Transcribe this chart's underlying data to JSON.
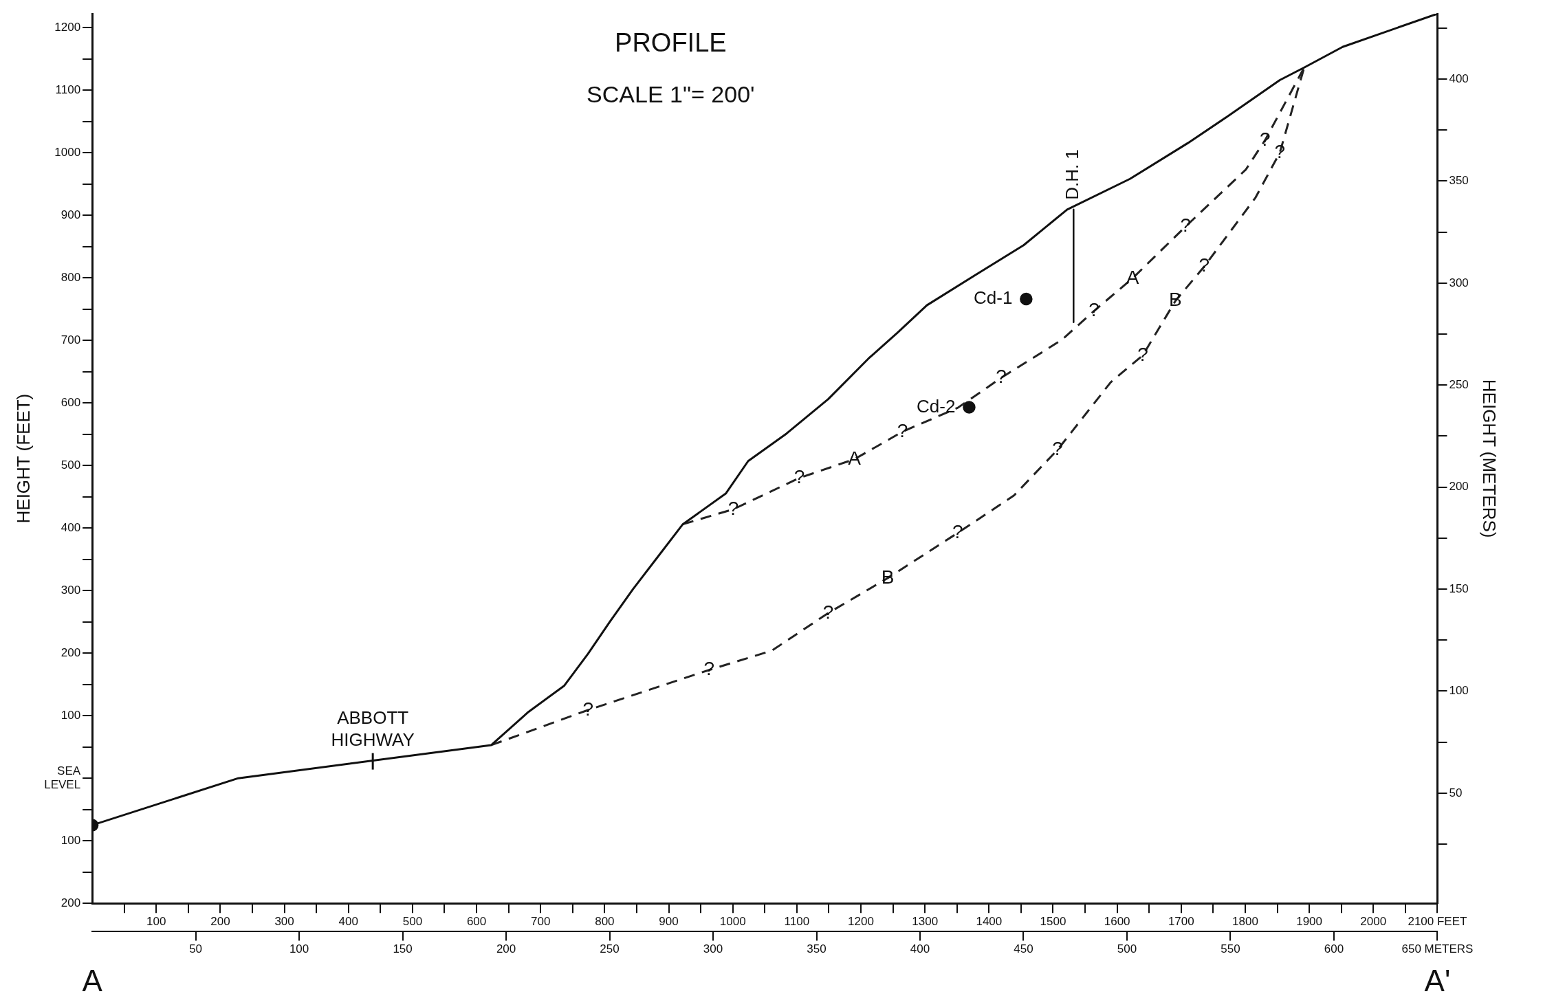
{
  "chart_data": {
    "type": "line",
    "title": "PROFILE",
    "subtitle": "SCALE 1\"= 200'",
    "ylabel": "HEIGHT (FEET)",
    "y2label": "HEIGHT (METERS)",
    "grid": false,
    "legend": false,
    "marker": "none",
    "xlim": [
      0,
      2100
    ],
    "xticks": [
      {
        "value": 50,
        "label": null
      },
      100,
      {
        "value": 150,
        "label": null
      },
      200,
      {
        "value": 250,
        "label": null
      },
      300,
      {
        "value": 350,
        "label": null
      },
      400,
      {
        "value": 450,
        "label": null
      },
      500,
      {
        "value": 550,
        "label": null
      },
      600,
      {
        "value": 650,
        "label": null
      },
      700,
      {
        "value": 750,
        "label": null
      },
      800,
      {
        "value": 850,
        "label": null
      },
      900,
      {
        "value": 950,
        "label": null
      },
      1000,
      {
        "value": 1050,
        "label": null
      },
      1100,
      {
        "value": 1150,
        "label": null
      },
      1200,
      {
        "value": 1250,
        "label": null
      },
      1300,
      {
        "value": 1350,
        "label": null
      },
      1400,
      {
        "value": 1450,
        "label": null
      },
      1500,
      {
        "value": 1550,
        "label": null
      },
      1600,
      {
        "value": 1650,
        "label": null
      },
      1700,
      {
        "value": 1750,
        "label": null
      },
      1800,
      {
        "value": 1850,
        "label": null
      },
      1900,
      {
        "value": 1950,
        "label": null
      },
      2000,
      {
        "value": 2050,
        "label": null
      },
      {
        "value": 2100,
        "label": "2100 FEET"
      }
    ],
    "x2lim": [
      0,
      650
    ],
    "x2ticks": [
      50,
      100,
      150,
      200,
      250,
      300,
      350,
      400,
      450,
      500,
      550,
      600,
      {
        "value": 650,
        "label": "650 METERS"
      }
    ],
    "ylim": [
      -200,
      1222
    ],
    "yticks": [
      {
        "value": -200,
        "label": "200"
      },
      {
        "value": -150,
        "label": null
      },
      {
        "value": -100,
        "label": "100"
      },
      {
        "value": -50,
        "label": null
      },
      {
        "value": 0,
        "label": "SEA LEVEL"
      },
      {
        "value": 50,
        "label": null
      },
      100,
      {
        "value": 150,
        "label": null
      },
      200,
      {
        "value": 250,
        "label": null
      },
      300,
      {
        "value": 350,
        "label": null
      },
      400,
      {
        "value": 450,
        "label": null
      },
      500,
      {
        "value": 550,
        "label": null
      },
      600,
      {
        "value": 650,
        "label": null
      },
      700,
      {
        "value": 750,
        "label": null
      },
      800,
      {
        "value": 850,
        "label": null
      },
      900,
      {
        "value": 950,
        "label": null
      },
      1000,
      {
        "value": 1050,
        "label": null
      },
      1100,
      {
        "value": 1150,
        "label": null
      },
      1200
    ],
    "y2lim": [
      -4,
      432
    ],
    "y2ticks": [
      {
        "value": 25,
        "label": null
      },
      50,
      {
        "value": 75,
        "label": null
      },
      100,
      {
        "value": 125,
        "label": null
      },
      150,
      {
        "value": 175,
        "label": null
      },
      200,
      {
        "value": 225,
        "label": null
      },
      250,
      {
        "value": 275,
        "label": null
      },
      300,
      {
        "value": 325,
        "label": null
      },
      350,
      {
        "value": 375,
        "label": null
      },
      400,
      {
        "value": 425,
        "label": null
      }
    ],
    "series": [
      {
        "color": "#111111",
        "line_style": "solid",
        "x": [
          0,
          228,
          623,
          681,
          737,
          774,
          808,
          844,
          883,
          922,
          989,
          1024,
          1084,
          1149,
          1212,
          1257,
          1303,
          1378,
          1454,
          1522,
          1620,
          1710,
          1771,
          1854,
          1892,
          1952,
          2100
        ],
        "values": [
          -75,
          0,
          53,
          106,
          148,
          199,
          250,
          302,
          354,
          406,
          455,
          507,
          551,
          606,
          671,
          712,
          756,
          804,
          852,
          909,
          958,
          1015,
          1057,
          1116,
          1136,
          1169,
          1222
        ]
      },
      {
        "color": "#222222",
        "line_style": "dashed",
        "x": [
          922,
          1001,
          1104,
          1190,
          1265,
          1351,
          1419,
          1514,
          1564,
          1624,
          1707,
          1801,
          1831,
          1892
        ],
        "values": [
          406,
          430,
          480,
          510,
          554,
          592,
          640,
          701,
          747,
          799,
          882,
          973,
          1020,
          1136
        ]
      },
      {
        "color": "#222222",
        "line_style": "dashed",
        "x": [
          623,
          774,
          963,
          1061,
          1149,
          1242,
          1351,
          1439,
          1507,
          1590,
          1640,
          1691,
          1736,
          1816,
          1854,
          1892
        ],
        "values": [
          53,
          109,
          173,
          204,
          264,
          320,
          392,
          452,
          525,
          633,
          676,
          763,
          818,
          928,
          1000,
          1136
        ]
      },
      {
        "name": "D.H. 1",
        "color": "#111111",
        "line_style": "solid",
        "x": [
          1532,
          1532
        ],
        "values": [
          909,
          729
        ]
      },
      {
        "type": "scatter",
        "name": "Cd-1",
        "color": "#111111",
        "marker": "circle",
        "x": [
          1458
        ],
        "values": [
          766
        ]
      },
      {
        "type": "scatter",
        "name": "Cd-2",
        "color": "#111111",
        "marker": "circle",
        "x": [
          1369
        ],
        "values": [
          593
        ]
      },
      {
        "type": "scatter",
        "color": "#111111",
        "marker": "circle",
        "x": [
          0
        ],
        "values": [
          -75
        ]
      }
    ],
    "annotations": [
      "A",
      "A'",
      {
        "text": "ABBOTT HIGHWAY",
        "x": 438,
        "y": 27
      },
      {
        "text": "?",
        "x": 1001,
        "y": 430
      },
      {
        "text": "?",
        "x": 1104,
        "y": 480
      },
      {
        "text": "?",
        "x": 1265,
        "y": 554
      },
      {
        "text": "?",
        "x": 1419,
        "y": 640
      },
      {
        "text": "?",
        "x": 1564,
        "y": 747
      },
      {
        "text": "?",
        "x": 1707,
        "y": 882
      },
      {
        "text": "?",
        "x": 1831,
        "y": 1020
      },
      {
        "text": "?",
        "x": 774,
        "y": 109
      },
      {
        "text": "?",
        "x": 963,
        "y": 173
      },
      {
        "text": "?",
        "x": 1149,
        "y": 264
      },
      {
        "text": "?",
        "x": 1351,
        "y": 392
      },
      {
        "text": "?",
        "x": 1507,
        "y": 525
      },
      {
        "text": "?",
        "x": 1640,
        "y": 676
      },
      {
        "text": "?",
        "x": 1736,
        "y": 818
      },
      {
        "text": "?",
        "x": 1854,
        "y": 1000
      },
      {
        "text": "A",
        "x": 1190,
        "y": 510
      },
      {
        "text": "A",
        "x": 1624,
        "y": 799
      },
      {
        "text": "B",
        "x": 1242,
        "y": 320
      },
      {
        "text": "B",
        "x": 1691,
        "y": 763
      }
    ]
  }
}
